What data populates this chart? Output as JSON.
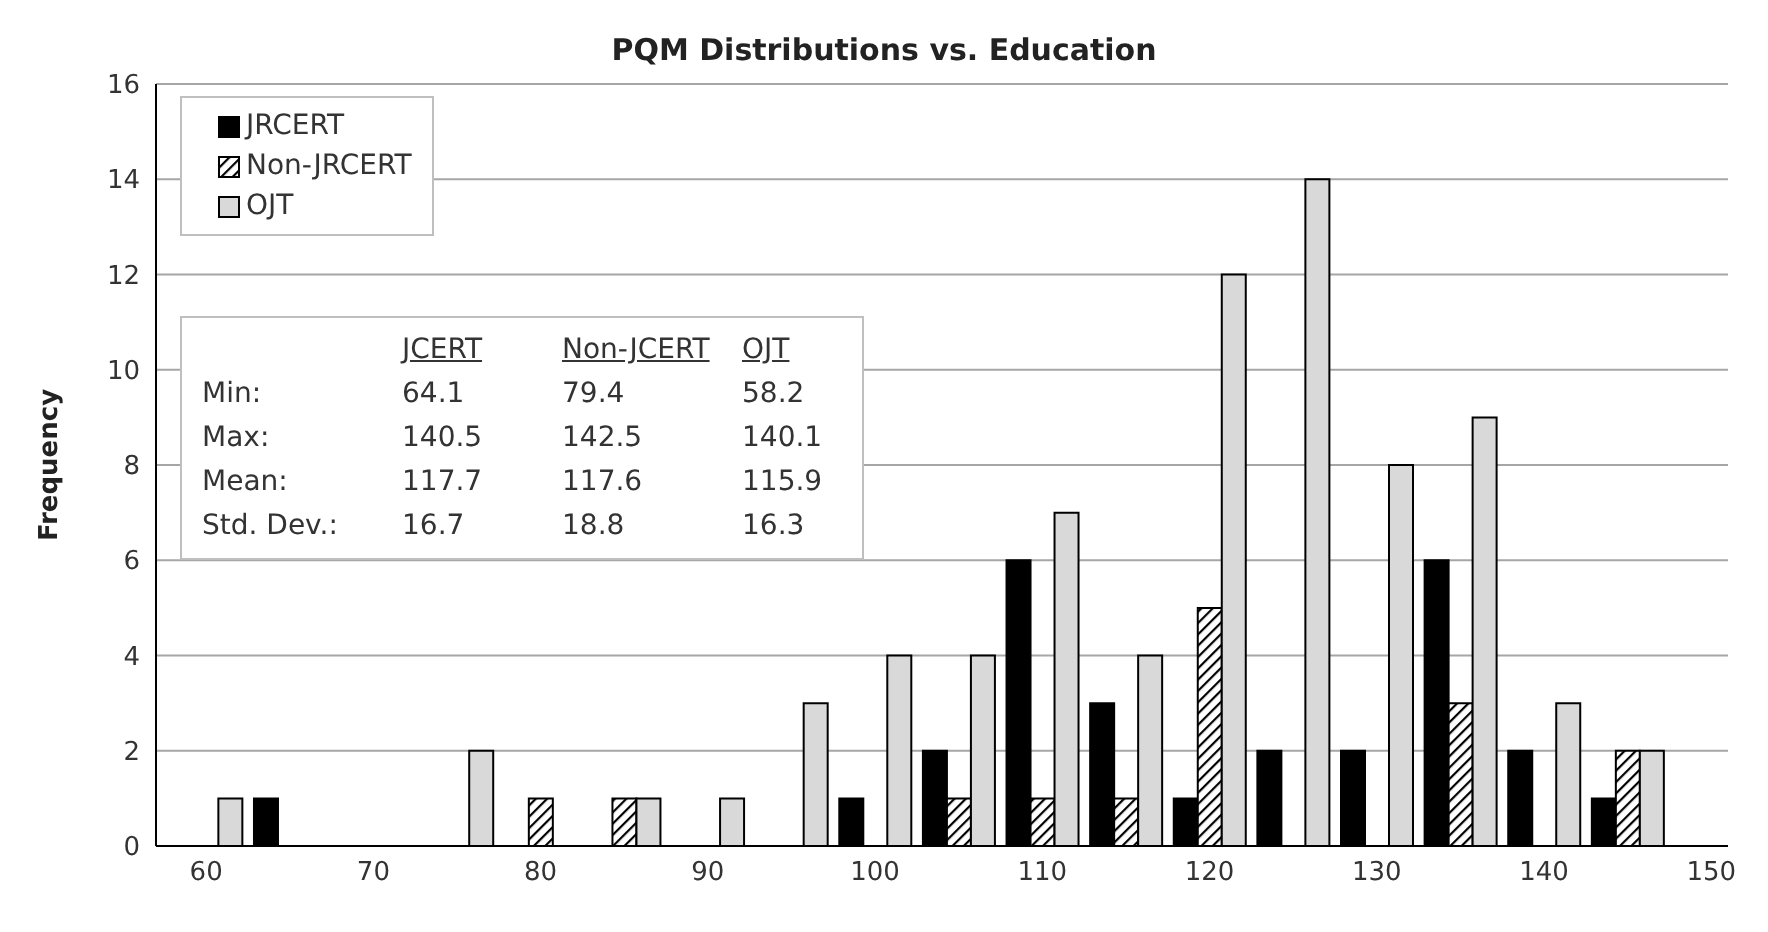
{
  "chart_data": {
    "type": "bar",
    "title": "PQM Distributions vs. Education",
    "ylabel": "Frequency",
    "x": [
      60,
      65,
      70,
      75,
      80,
      85,
      90,
      95,
      100,
      105,
      110,
      115,
      120,
      125,
      130,
      135,
      140,
      145
    ],
    "series": [
      {
        "name": "JRCERT",
        "color": "#000000",
        "values": [
          0,
          1,
          0,
          0,
          0,
          0,
          0,
          0,
          1,
          2,
          6,
          3,
          1,
          2,
          2,
          6,
          2,
          1
        ]
      },
      {
        "name": "Non-JRCERT",
        "color": "#000000",
        "values": [
          0,
          0,
          0,
          0,
          1,
          1,
          0,
          0,
          0,
          1,
          1,
          1,
          5,
          0,
          0,
          3,
          0,
          2
        ]
      },
      {
        "name": "OJT",
        "color": "#d9d9d9",
        "values": [
          1,
          0,
          0,
          2,
          0,
          1,
          1,
          3,
          4,
          4,
          7,
          4,
          12,
          14,
          8,
          9,
          3,
          2
        ]
      }
    ],
    "xlim": [
      57,
      151
    ],
    "xticks": [
      60,
      70,
      80,
      90,
      100,
      110,
      120,
      130,
      140,
      150
    ],
    "ylim": [
      0,
      16
    ],
    "yticks": [
      0,
      2,
      4,
      6,
      8,
      10,
      12,
      14,
      16
    ],
    "grid": "y",
    "legend": "top left",
    "annotations": [
      "JCERT",
      "Non-JCERT",
      "OJT",
      "Min:",
      "64.1",
      "79.4",
      "58.2",
      "Max:",
      "140.5",
      "142.5",
      "140.1",
      "Mean:",
      "117.7",
      "117.6",
      "115.9",
      "Std. Dev.:",
      "16.7",
      "18.8",
      "16.3"
    ]
  }
}
